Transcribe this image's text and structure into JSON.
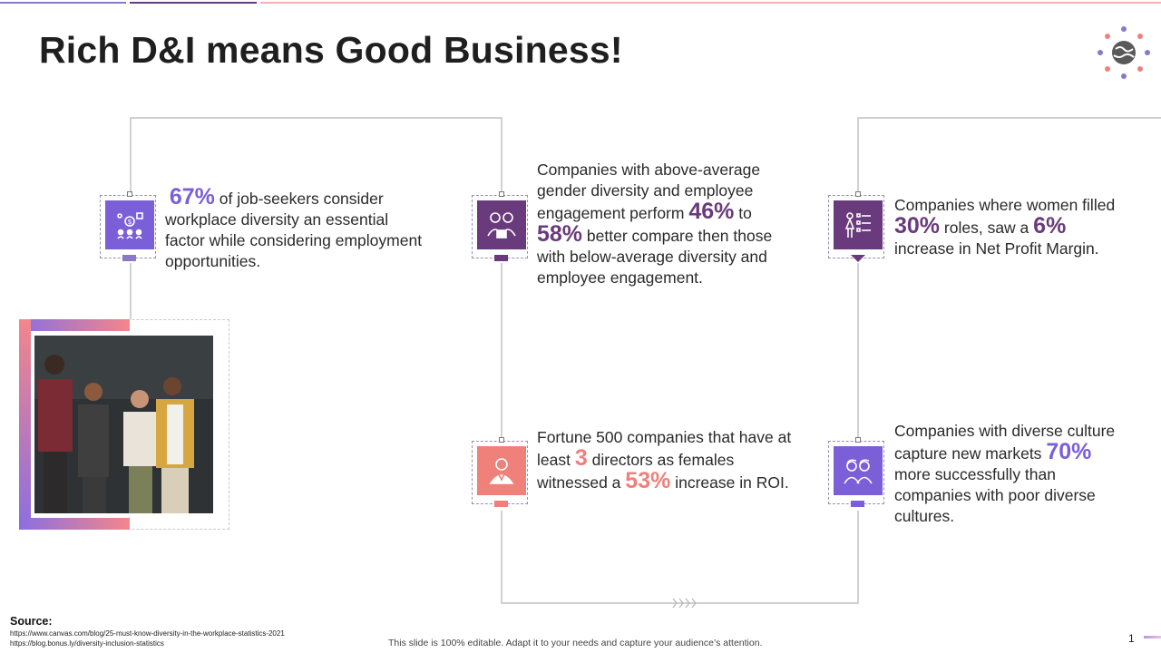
{
  "title": "Rich D&I means Good Business!",
  "colors": {
    "purple": "#7b5fd9",
    "plum": "#6a3b7c",
    "coral": "#f0807a",
    "line": "#b5b5b5"
  },
  "logo_icon": "globe-people-icon",
  "cards": [
    {
      "icon": "money-people-icon",
      "stat": "67%",
      "text": "of job-seekers consider workplace diversity an essential factor while considering employment opportunities."
    },
    {
      "icon": "couple-briefcase-icon",
      "prefix": "Companies with above-average gender diversity and employee engagement perform",
      "stat1": "46%",
      "mid": "to",
      "stat2": "58%",
      "suffix": "better compare then those with below-average diversity and employee engagement."
    },
    {
      "icon": "woman-checklist-icon",
      "prefix": "Companies where women filled",
      "stat1": "30%",
      "mid": "roles, saw a",
      "stat2": "6%",
      "suffix": "increase in Net Profit Margin."
    },
    {
      "icon": "businesswoman-icon",
      "prefix": "Fortune 500 companies that have at least",
      "stat1": "3",
      "mid": "directors as females witnessed a",
      "stat2": "53%",
      "suffix": "increase in ROI."
    },
    {
      "icon": "diverse-people-icon",
      "prefix": "Companies with diverse culture capture new markets",
      "stat": "70%",
      "suffix": "more successfully than companies with poor diverse cultures."
    }
  ],
  "photo": {
    "description_icon": "team-photo"
  },
  "source": {
    "label": "Source:",
    "urls": [
      "https://www.canvas.com/blog/25-must-know-diversity-in-the-workplace-statistics-2021",
      "https://blog.bonus.ly/diversity-inclusion-statistics"
    ]
  },
  "footer_note": "This slide is 100% editable. Adapt it to your needs and capture your audience’s attention.",
  "page_number": "1"
}
